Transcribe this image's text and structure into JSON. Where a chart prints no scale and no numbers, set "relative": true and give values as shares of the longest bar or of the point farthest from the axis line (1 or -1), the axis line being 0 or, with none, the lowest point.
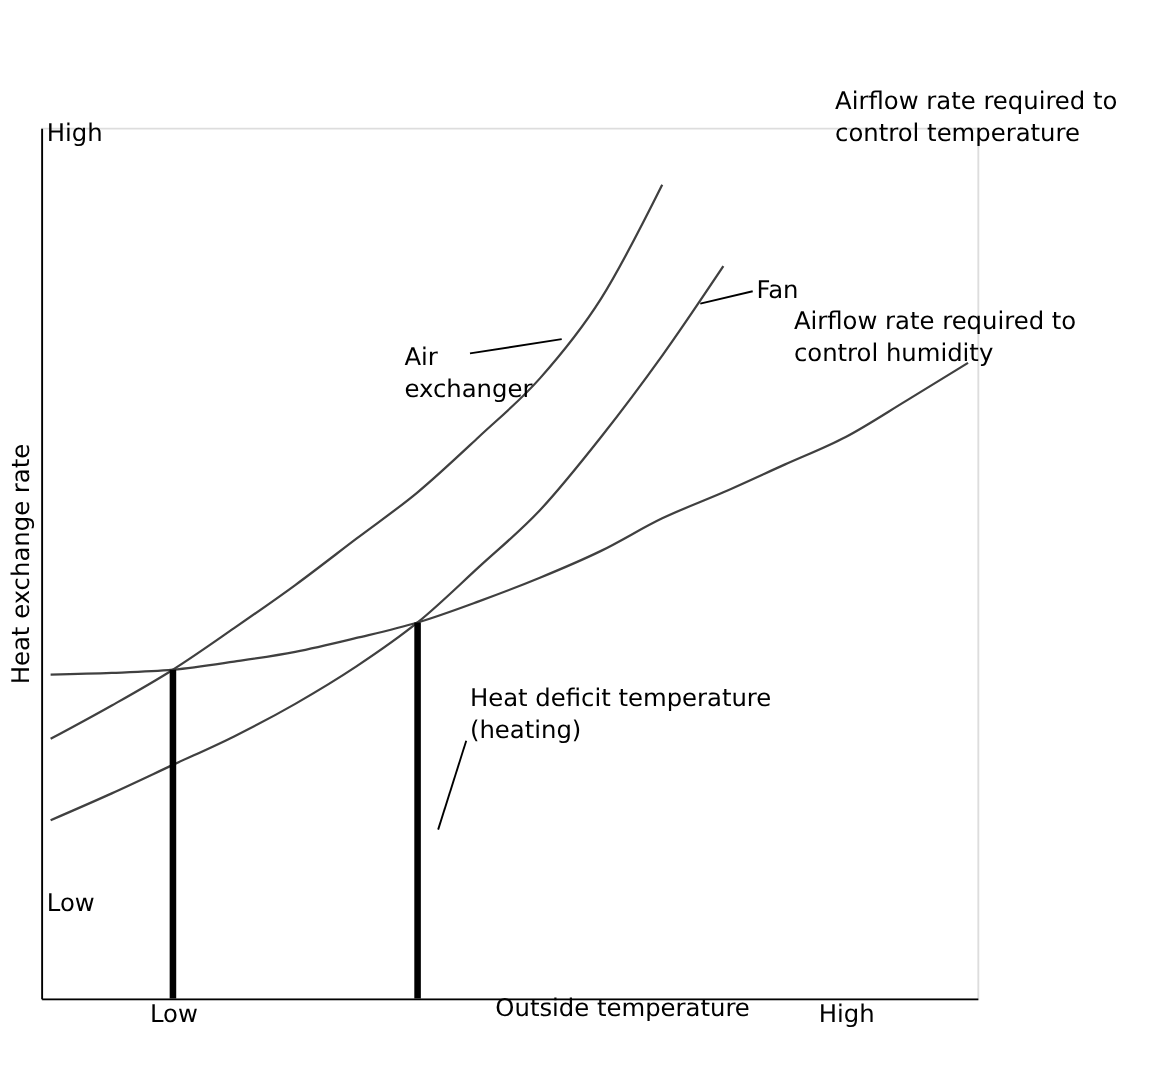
{
  "chart_data": {
    "type": "line",
    "relative": true,
    "xlabel": "Outside temperature",
    "ylabel": "Heat exchange rate",
    "categories": [
      null,
      null,
      "Low",
      null,
      null,
      null,
      null,
      null,
      null,
      null,
      null,
      null,
      null,
      "High",
      null,
      null
    ],
    "marker": "none",
    "line_style": "solid",
    "series": [
      {
        "color": "#404040",
        "values": [
          0.398,
          0.4,
          0.404,
          0.414,
          0.426,
          0.443,
          0.462,
          0.488,
          0.517,
          0.55,
          0.59,
          0.622,
          0.656,
          0.69,
          0.735,
          0.781
        ]
      },
      {
        "color": "#404040",
        "values": [
          0.319,
          0.36,
          0.404,
          0.455,
          0.508,
          0.565,
          0.622,
          0.69,
          0.762,
          0.86,
          1.0,
          null,
          null,
          null,
          null,
          null
        ]
      },
      {
        "color": "#404040",
        "values": [
          0.219,
          0.252,
          0.287,
          0.322,
          0.362,
          0.408,
          0.462,
          0.53,
          0.6,
          0.69,
          0.79,
          0.9,
          null,
          null,
          null,
          null
        ]
      },
      {
        "type": "bar",
        "color": "#000000",
        "values": [
          null,
          null,
          0.404,
          null,
          null,
          null,
          0.462,
          null,
          null,
          null,
          null,
          null,
          null,
          null,
          null,
          null
        ]
      }
    ],
    "annotations": [
      "High",
      "Low",
      "Air exchanger",
      "Fan",
      "Airflow rate required to control temperature",
      "Airflow rate required to control humidity",
      "Heat deficit temperature (heating)"
    ]
  }
}
